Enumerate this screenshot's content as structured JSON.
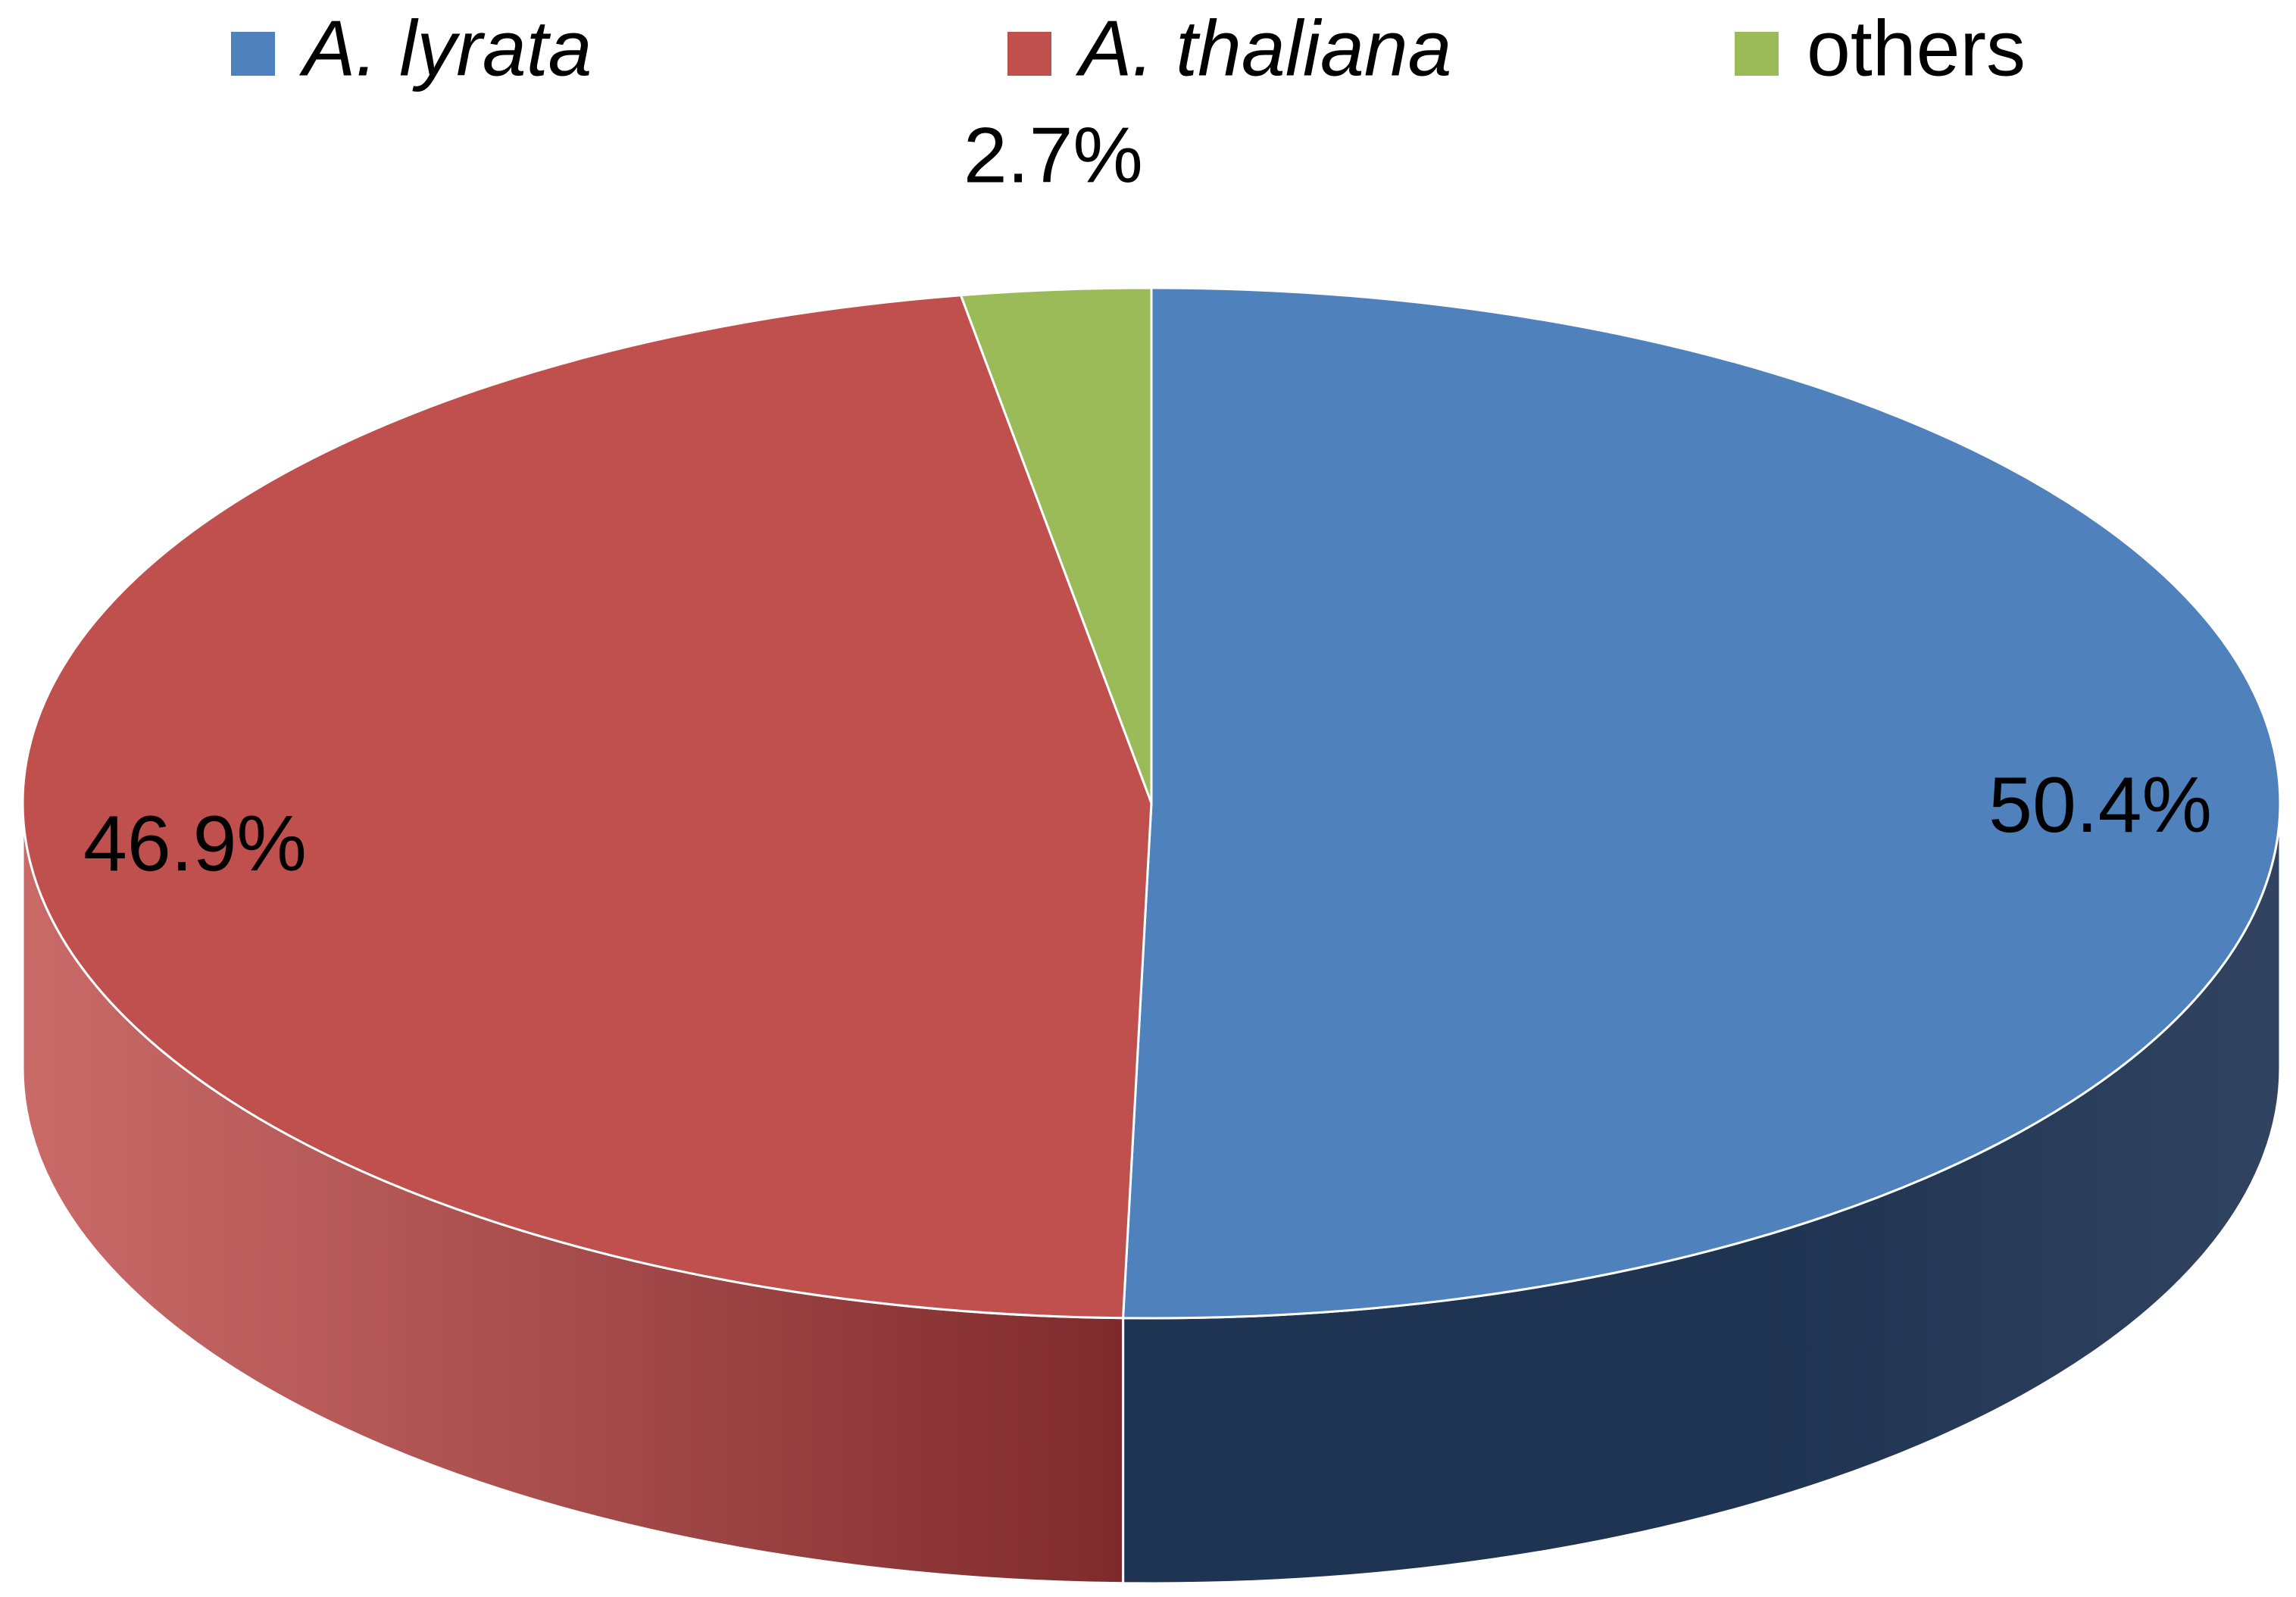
{
  "chart_data": {
    "type": "pie",
    "style": "3d",
    "legend_position": "top",
    "categories": [
      "A. lyrata",
      "A. thaliana",
      "others"
    ],
    "values": [
      50.4,
      46.9,
      2.7
    ],
    "data_labels": [
      "50.4%",
      "46.9%",
      "2.7%"
    ],
    "colors": [
      "#4F81BD",
      "#C0504D",
      "#9BBB59"
    ],
    "side_colors": [
      "#1F3352",
      "#7E2A2C",
      "#5D7530"
    ],
    "legend_italic": [
      true,
      true,
      false
    ]
  }
}
